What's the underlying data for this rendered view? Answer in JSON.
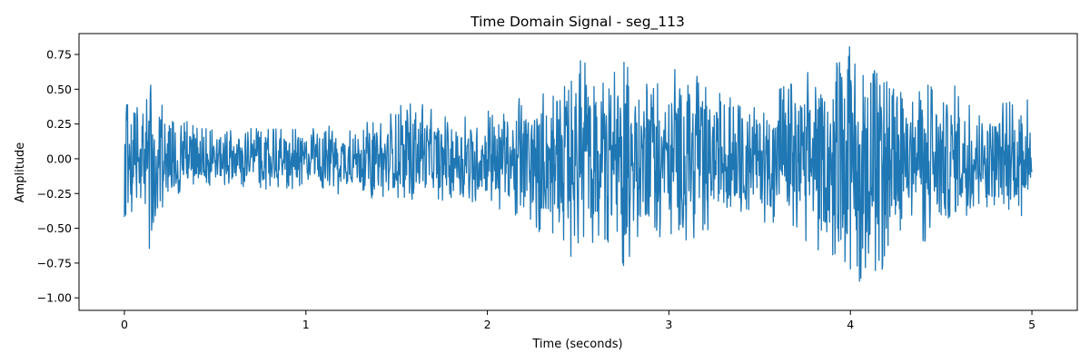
{
  "chart_data": {
    "type": "line",
    "title": "Time Domain Signal - seg_113",
    "xlabel": "Time (seconds)",
    "ylabel": "Amplitude",
    "xlim": [
      -0.25,
      5.25
    ],
    "ylim": [
      -1.09,
      0.9
    ],
    "grid": false,
    "x_ticks": [
      0,
      1,
      2,
      3,
      4,
      5
    ],
    "x_tick_labels": [
      "0",
      "1",
      "2",
      "3",
      "4",
      "5"
    ],
    "y_ticks": [
      0.75,
      0.5,
      0.25,
      0.0,
      -0.25,
      -0.5,
      -0.75,
      -1.0
    ],
    "y_tick_labels": [
      "0.75",
      "0.50",
      "0.25",
      "0.00",
      "−0.25",
      "−0.50",
      "−0.75",
      "−1.00"
    ],
    "series": [
      {
        "color": "#1f77b4",
        "sample_rate_hz": 400,
        "duration_s": 5.0,
        "envelope": {
          "t": [
            0.0,
            0.02,
            0.05,
            0.1,
            0.15,
            0.2,
            0.3,
            0.5,
            0.8,
            1.0,
            1.2,
            1.45,
            1.5,
            1.8,
            2.0,
            2.2,
            2.3,
            2.45,
            2.5,
            2.6,
            2.75,
            2.8,
            3.0,
            3.05,
            3.3,
            3.5,
            3.7,
            3.9,
            4.0,
            4.1,
            4.3,
            4.5,
            4.7,
            4.9,
            5.0
          ],
          "upper": [
            0.52,
            0.4,
            0.35,
            0.5,
            0.6,
            0.45,
            0.3,
            0.22,
            0.22,
            0.22,
            0.25,
            0.28,
            0.5,
            0.3,
            0.35,
            0.45,
            0.5,
            0.55,
            0.75,
            0.62,
            0.72,
            0.62,
            0.6,
            0.76,
            0.45,
            0.4,
            0.6,
            0.7,
            0.82,
            0.7,
            0.45,
            0.6,
            0.4,
            0.42,
            0.6
          ],
          "lower": [
            -0.48,
            -0.4,
            -0.38,
            -0.45,
            -0.78,
            -0.42,
            -0.25,
            -0.2,
            -0.22,
            -0.22,
            -0.26,
            -0.3,
            -0.3,
            -0.3,
            -0.35,
            -0.42,
            -0.55,
            -0.72,
            -0.65,
            -0.6,
            -0.87,
            -0.65,
            -0.55,
            -0.75,
            -0.4,
            -0.45,
            -0.6,
            -0.7,
            -0.8,
            -1.0,
            -0.5,
            -0.7,
            -0.4,
            -0.42,
            -0.4
          ]
        }
      }
    ]
  }
}
